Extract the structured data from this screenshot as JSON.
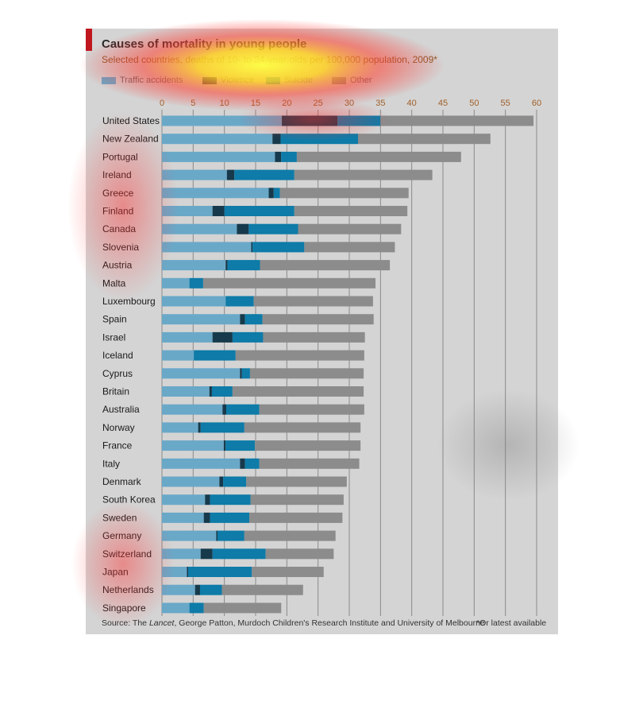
{
  "title": "Causes of mortality in young people",
  "subtitle": "Selected countries, deaths of 10- to 24-year-olds per 100,000 population, 2009*",
  "source": {
    "prefix": "Source: The ",
    "journal": "Lancet",
    "rest": ", George Patton, Murdoch Children's Research Institute and University of Melbourne"
  },
  "note": "*Or latest available",
  "colors": {
    "traffic": "#6aa8c8",
    "violence": "#163a4c",
    "suicide": "#0e7ba8",
    "other": "#8c8c8c",
    "panel": "#d4d4d4",
    "grid": "#8a8a8a",
    "accent": "#c0171e"
  },
  "chart_data": {
    "type": "bar",
    "orientation": "horizontal",
    "stacked": true,
    "title": "Causes of mortality in young people",
    "subtitle": "Selected countries, deaths of 10- to 24-year-olds per 100,000 population, 2009*",
    "xlim": [
      0,
      60
    ],
    "ticks": [
      0,
      5,
      10,
      15,
      20,
      25,
      30,
      35,
      40,
      45,
      50,
      55,
      60
    ],
    "grid": true,
    "legend_position": "top-left",
    "categories": [
      "United States",
      "New Zealand",
      "Portugal",
      "Ireland",
      "Greece",
      "Finland",
      "Canada",
      "Slovenia",
      "Austria",
      "Malta",
      "Luxembourg",
      "Spain",
      "Israel",
      "Iceland",
      "Cyprus",
      "Britain",
      "Australia",
      "Norway",
      "France",
      "Italy",
      "Denmark",
      "South Korea",
      "Sweden",
      "Germany",
      "Switzerland",
      "Japan",
      "Netherlands",
      "Singapore"
    ],
    "series": [
      {
        "name": "Traffic accidents",
        "values": [
          19.2,
          17.7,
          18.1,
          10.4,
          17.1,
          8.1,
          12.0,
          14.3,
          10.2,
          4.4,
          10.2,
          12.5,
          8.1,
          5.1,
          12.5,
          7.6,
          9.7,
          5.8,
          9.9,
          12.5,
          9.2,
          6.9,
          6.7,
          8.7,
          6.2,
          4.0,
          5.3,
          4.4
        ]
      },
      {
        "name": "Violence",
        "values": [
          8.9,
          1.3,
          1.0,
          1.2,
          0.8,
          1.9,
          1.9,
          0.2,
          0.3,
          0.0,
          0.0,
          0.8,
          3.2,
          0.0,
          0.3,
          0.4,
          0.6,
          0.4,
          0.3,
          0.8,
          0.6,
          0.8,
          1.0,
          0.2,
          1.9,
          0.2,
          0.8,
          0.0
        ]
      },
      {
        "name": "Suicide",
        "values": [
          6.9,
          12.4,
          2.5,
          9.6,
          1.0,
          11.2,
          7.9,
          8.3,
          5.2,
          2.2,
          4.5,
          2.8,
          4.9,
          6.7,
          1.3,
          3.3,
          5.3,
          7.0,
          4.7,
          2.3,
          3.7,
          6.5,
          6.3,
          4.3,
          8.5,
          10.2,
          3.5,
          2.3
        ]
      },
      {
        "name": "Other",
        "values": [
          24.5,
          21.2,
          26.3,
          22.1,
          20.6,
          18.1,
          16.5,
          14.5,
          20.8,
          27.6,
          19.1,
          17.8,
          16.3,
          20.6,
          18.2,
          21.0,
          16.8,
          18.6,
          16.9,
          16.0,
          16.1,
          14.9,
          14.9,
          14.6,
          10.9,
          11.5,
          13.0,
          12.4
        ]
      }
    ]
  }
}
